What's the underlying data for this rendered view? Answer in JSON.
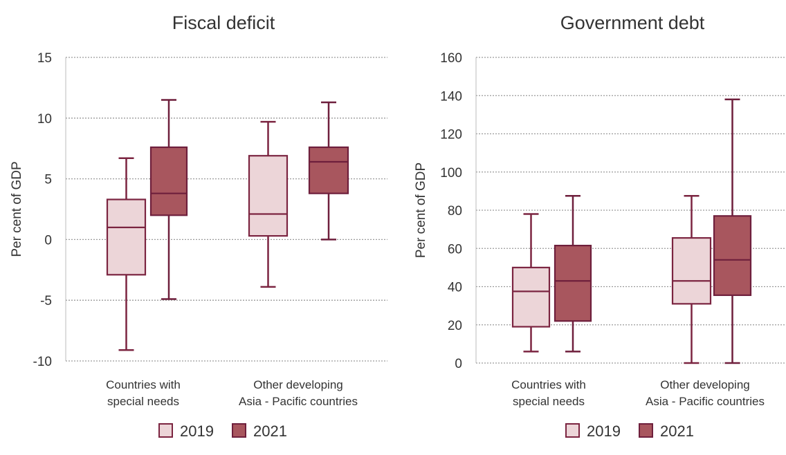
{
  "chart_data": [
    {
      "type": "box",
      "title": "Fiscal deficit",
      "ylabel": "Per cent of GDP",
      "xlabel": "",
      "ylim": [
        -10,
        15
      ],
      "yticks": [
        "15",
        "10",
        "5",
        "0",
        "-5",
        "-10"
      ],
      "ytick_values": [
        15,
        10,
        5,
        0,
        -5,
        -10
      ],
      "grid": true,
      "legend_position": "bottom",
      "categories": [
        [
          "Countries with",
          "special needs"
        ],
        [
          "Other developing",
          "Asia - Pacific countries"
        ]
      ],
      "series": [
        {
          "name": "2019",
          "color": "#ecd5d8",
          "stroke": "#7b2440",
          "boxes": [
            {
              "min": -9.1,
              "q1": -2.9,
              "median": 1.0,
              "q3": 3.3,
              "max": 6.7
            },
            {
              "min": -3.9,
              "q1": 0.3,
              "median": 2.1,
              "q3": 6.9,
              "max": 9.7
            }
          ]
        },
        {
          "name": "2021",
          "color": "#a8565e",
          "stroke": "#6e1f3c",
          "boxes": [
            {
              "min": -4.9,
              "q1": 2.0,
              "median": 3.8,
              "q3": 7.6,
              "max": 11.5
            },
            {
              "min": 0.0,
              "q1": 3.8,
              "median": 6.4,
              "q3": 7.6,
              "max": 11.3
            }
          ]
        }
      ]
    },
    {
      "type": "box",
      "title": "Government debt",
      "ylabel": "Per cent of GDP",
      "xlabel": "",
      "ylim": [
        0,
        160
      ],
      "yticks": [
        "160",
        "140",
        "120",
        "100",
        "80",
        "60",
        "40",
        "20",
        "0"
      ],
      "ytick_values": [
        160,
        140,
        120,
        100,
        80,
        60,
        40,
        20,
        0
      ],
      "grid": true,
      "legend_position": "bottom",
      "categories": [
        [
          "Countries with",
          "special needs"
        ],
        [
          "Other developing",
          "Asia - Pacific countries"
        ]
      ],
      "series": [
        {
          "name": "2019",
          "color": "#ecd5d8",
          "stroke": "#7b2440",
          "boxes": [
            {
              "min": 6,
              "q1": 19,
              "median": 37.5,
              "q3": 50,
              "max": 78
            },
            {
              "min": 0,
              "q1": 31,
              "median": 43,
              "q3": 65.5,
              "max": 87.5
            }
          ]
        },
        {
          "name": "2021",
          "color": "#a8565e",
          "stroke": "#6e1f3c",
          "boxes": [
            {
              "min": 6,
              "q1": 22,
              "median": 43,
              "q3": 61.5,
              "max": 87.5
            },
            {
              "min": 0,
              "q1": 35.5,
              "median": 54,
              "q3": 77,
              "max": 138
            }
          ]
        }
      ]
    }
  ]
}
